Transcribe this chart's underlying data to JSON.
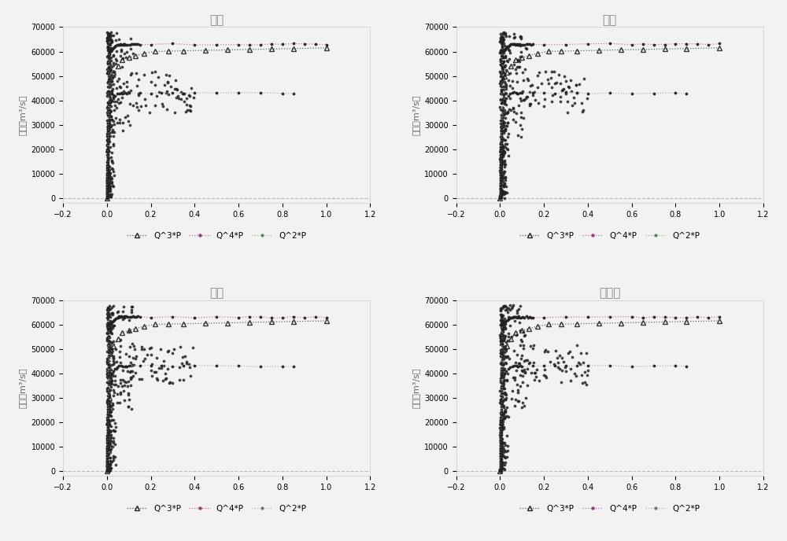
{
  "subplots": [
    {
      "title": "铜陵"
    },
    {
      "title": "大通"
    },
    {
      "title": "芜湖"
    },
    {
      "title": "马鞍山"
    }
  ],
  "ylabel": "流量（m³/s）",
  "xlim": [
    -0.2,
    1.2
  ],
  "ylim": [
    -2000,
    70000
  ],
  "yticks": [
    0,
    10000,
    20000,
    30000,
    40000,
    50000,
    60000,
    70000
  ],
  "xticks": [
    -0.2,
    0.0,
    0.2,
    0.4,
    0.6,
    0.8,
    1.0,
    1.2
  ],
  "scatter_color": "#222222",
  "q3p_line_color": "#555555",
  "q3p_marker_color": "#222222",
  "q4p_line_color": "#cc66aa",
  "q4p_marker_color": "#222222",
  "q2p_line_color": "#99bb99",
  "q2p_marker_color": "#222222",
  "bg_color": "#f2f2f2",
  "hline_color": "#bbbbbb",
  "title_color": "#888888"
}
